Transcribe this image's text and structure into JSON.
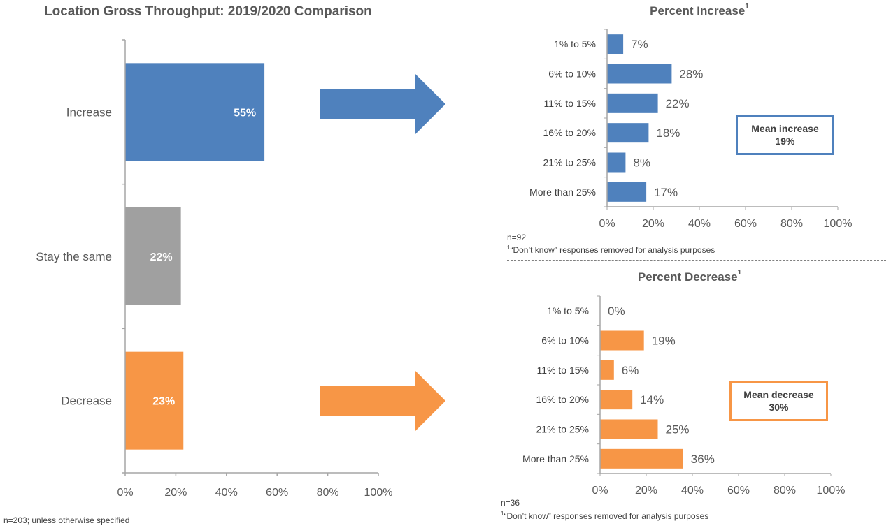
{
  "main_title": "Location Gross Throughput: 2019/2020 Comparison",
  "footnote_main": "n=203; unless otherwise specified",
  "chart_data": [
    {
      "id": "main",
      "type": "bar",
      "orientation": "horizontal",
      "title": "Location Gross Throughput: 2019/2020 Comparison",
      "categories": [
        "Increase",
        "Stay the same",
        "Decrease"
      ],
      "values": [
        55,
        22,
        23
      ],
      "value_labels": [
        "55%",
        "22%",
        "23%"
      ],
      "colors": [
        "#4f81bd",
        "#a0a0a0",
        "#f79646"
      ],
      "xlim": [
        0,
        100
      ],
      "xticks": [
        "0%",
        "20%",
        "40%",
        "60%",
        "80%",
        "100%"
      ],
      "grid": false
    },
    {
      "id": "increase",
      "type": "bar",
      "orientation": "horizontal",
      "title": "Percent Increase",
      "title_sup": "1",
      "categories": [
        "1% to 5%",
        "6% to 10%",
        "11% to 15%",
        "16% to 20%",
        "21% to 25%",
        "More than 25%"
      ],
      "values": [
        7,
        28,
        22,
        18,
        8,
        17
      ],
      "value_labels": [
        "7%",
        "28%",
        "22%",
        "18%",
        "8%",
        "17%"
      ],
      "color": "#4f81bd",
      "xlim": [
        0,
        100
      ],
      "xticks": [
        "0%",
        "20%",
        "40%",
        "60%",
        "80%",
        "100%"
      ],
      "grid": false,
      "n_label": "n=92",
      "footnote": "“Don’t know” responses removed for analysis purposes",
      "footnote_sup": "1",
      "mean_label": "Mean increase",
      "mean_value": "19%"
    },
    {
      "id": "decrease",
      "type": "bar",
      "orientation": "horizontal",
      "title": "Percent Decrease",
      "title_sup": "1",
      "categories": [
        "1% to 5%",
        "6% to 10%",
        "11% to 15%",
        "16% to 20%",
        "21% to 25%",
        "More than 25%"
      ],
      "values": [
        0,
        19,
        6,
        14,
        25,
        36
      ],
      "value_labels": [
        "0%",
        "19%",
        "6%",
        "14%",
        "25%",
        "36%"
      ],
      "color": "#f79646",
      "xlim": [
        0,
        100
      ],
      "xticks": [
        "0%",
        "20%",
        "40%",
        "60%",
        "80%",
        "100%"
      ],
      "grid": false,
      "n_label": "n=36",
      "footnote": "“Don’t know” responses removed for analysis purposes",
      "footnote_sup": "1",
      "mean_label": "Mean decrease",
      "mean_value": "30%"
    }
  ],
  "arrows": [
    {
      "name": "increase-arrow",
      "color": "#4f81bd"
    },
    {
      "name": "decrease-arrow",
      "color": "#f79646"
    }
  ]
}
